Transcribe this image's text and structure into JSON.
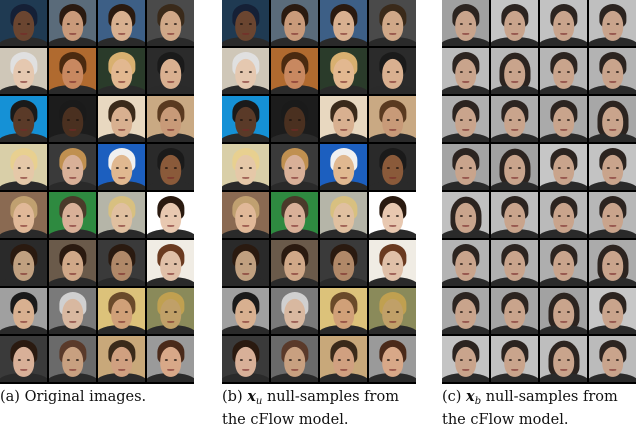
{
  "panels": [
    {
      "id": "a",
      "caption_label": "(a)",
      "caption_math": "",
      "caption_sub": "",
      "caption_line1": "Original images.",
      "caption_line2": "",
      "tile_style": "color"
    },
    {
      "id": "b",
      "caption_label": "(b)",
      "caption_math": "x",
      "caption_sub": "u",
      "caption_line1": "null-samples from",
      "caption_line2": "the cFlow model.",
      "tile_style": "color"
    },
    {
      "id": "c",
      "caption_label": "(c)",
      "caption_math": "x",
      "caption_sub": "b",
      "caption_line1": "null-samples from",
      "caption_line2": "the cFlow model.",
      "tile_style": "gray"
    }
  ],
  "grid": {
    "rows": 8,
    "cols": 4
  },
  "colors": {
    "tile_backgrounds": [
      "#1f3a52",
      "#5a6b7a",
      "#3d5f86",
      "#4a4a4a",
      "#cfc7b8",
      "#b06a2f",
      "#2a3b2a",
      "#2b2b2b",
      "#1591d6",
      "#1c1c1c",
      "#e8d8c0",
      "#c9a983",
      "#d9cfa8",
      "#3a3a3a",
      "#1c5fbf",
      "#2a2a2a",
      "#8a6a52",
      "#2e8a40",
      "#b5b5a8",
      "#ffffff",
      "#2a2a2a",
      "#6a5a4a",
      "#3a3a3a",
      "#f0ece4",
      "#a0a0a0",
      "#7a7a7a",
      "#dcc27a",
      "#8a8a5a",
      "#3a3a3a",
      "#6a6a6a",
      "#c8a87a",
      "#9a9a9a"
    ],
    "skin_tones": [
      "#6a4530",
      "#c99a7a",
      "#d8b090",
      "#d0a888",
      "#e5c8b0",
      "#c88860",
      "#e2b890",
      "#d9b090",
      "#5a3a28",
      "#4a3020",
      "#d8b090",
      "#c89a78",
      "#e5c8a8",
      "#d8b098",
      "#e0b890",
      "#8a5a3a",
      "#e0b898",
      "#d8b098",
      "#e0c0a0",
      "#e8c8b0",
      "#c0a080",
      "#d0a888",
      "#b08868",
      "#e0c0a8",
      "#d8b090",
      "#d8b8a0",
      "#d0a078",
      "#c0a068",
      "#d8b098",
      "#c8a080",
      "#d0a080",
      "#d8a888"
    ],
    "hair_tones": [
      "#152036",
      "#2a1a10",
      "#2a1a10",
      "#3a2a1a",
      "#e0e0e0",
      "#4a2a10",
      "#d8b070",
      "#1a1a1a",
      "#1a1a1a",
      "#1a1a1a",
      "#3a2a1a",
      "#5a3a20",
      "#e8d090",
      "#c09050",
      "#f0f0f0",
      "#1a1a1a",
      "#c0a070",
      "#4a3a2a",
      "#d8c080",
      "#2a1a10",
      "#2a1a10",
      "#2a1a10",
      "#2a1a10",
      "#6a3a20",
      "#1a1a1a",
      "#d0d0d0",
      "#6a4a2a",
      "#c0a050",
      "#2a1a10",
      "#5a3a2a",
      "#3a2a1a",
      "#4a2a1a"
    ],
    "gray_background": "#a9a9a9",
    "gray_skin": "#c9a48c",
    "gray_hair": "#2c2420",
    "gray_shirt": "#2a2a2a",
    "female_positions_gray": [
      5,
      11,
      13,
      16,
      23,
      26,
      30
    ]
  }
}
